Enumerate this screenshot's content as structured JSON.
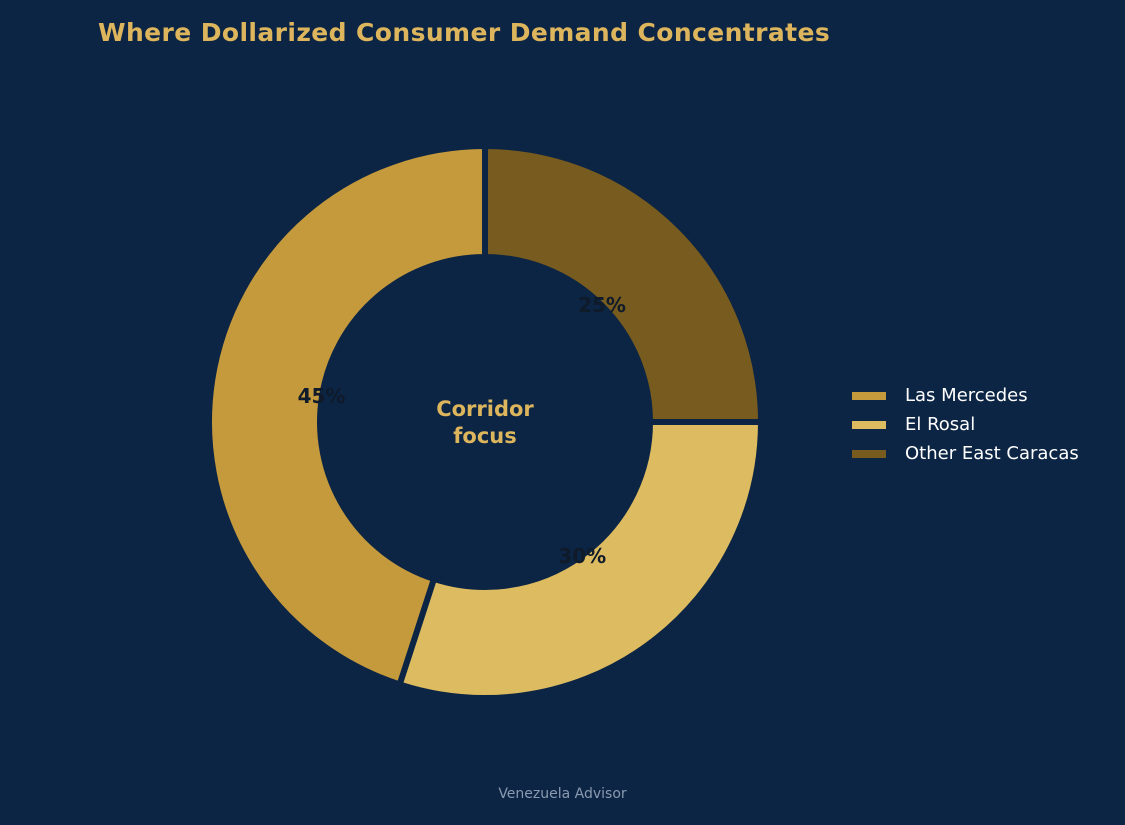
{
  "chart_data": {
    "type": "pie",
    "style": "donut",
    "title": "Where Dollarized Consumer Demand Concentrates",
    "center_label": "Corridor\nfocus",
    "slices": [
      {
        "label": "Las Mercedes",
        "value": 45,
        "pct_label": "45%",
        "color": "#c59a3c"
      },
      {
        "label": "El Rosal",
        "value": 30,
        "pct_label": "30%",
        "color": "#ddbb60"
      },
      {
        "label": "Other East Caracas",
        "value": 25,
        "pct_label": "25%",
        "color": "#785b1e"
      }
    ],
    "start_angle": 90,
    "direction": "counterclockwise",
    "legend_position": "right"
  },
  "footer": "Venezuela Advisor",
  "colors": {
    "background": "#0c2544",
    "title": "#ddb55c",
    "center_text": "#ddb55c",
    "pct_text": "#0f1a2a",
    "legend_text": "#ffffff",
    "footer_text": "#8a9ab0"
  }
}
